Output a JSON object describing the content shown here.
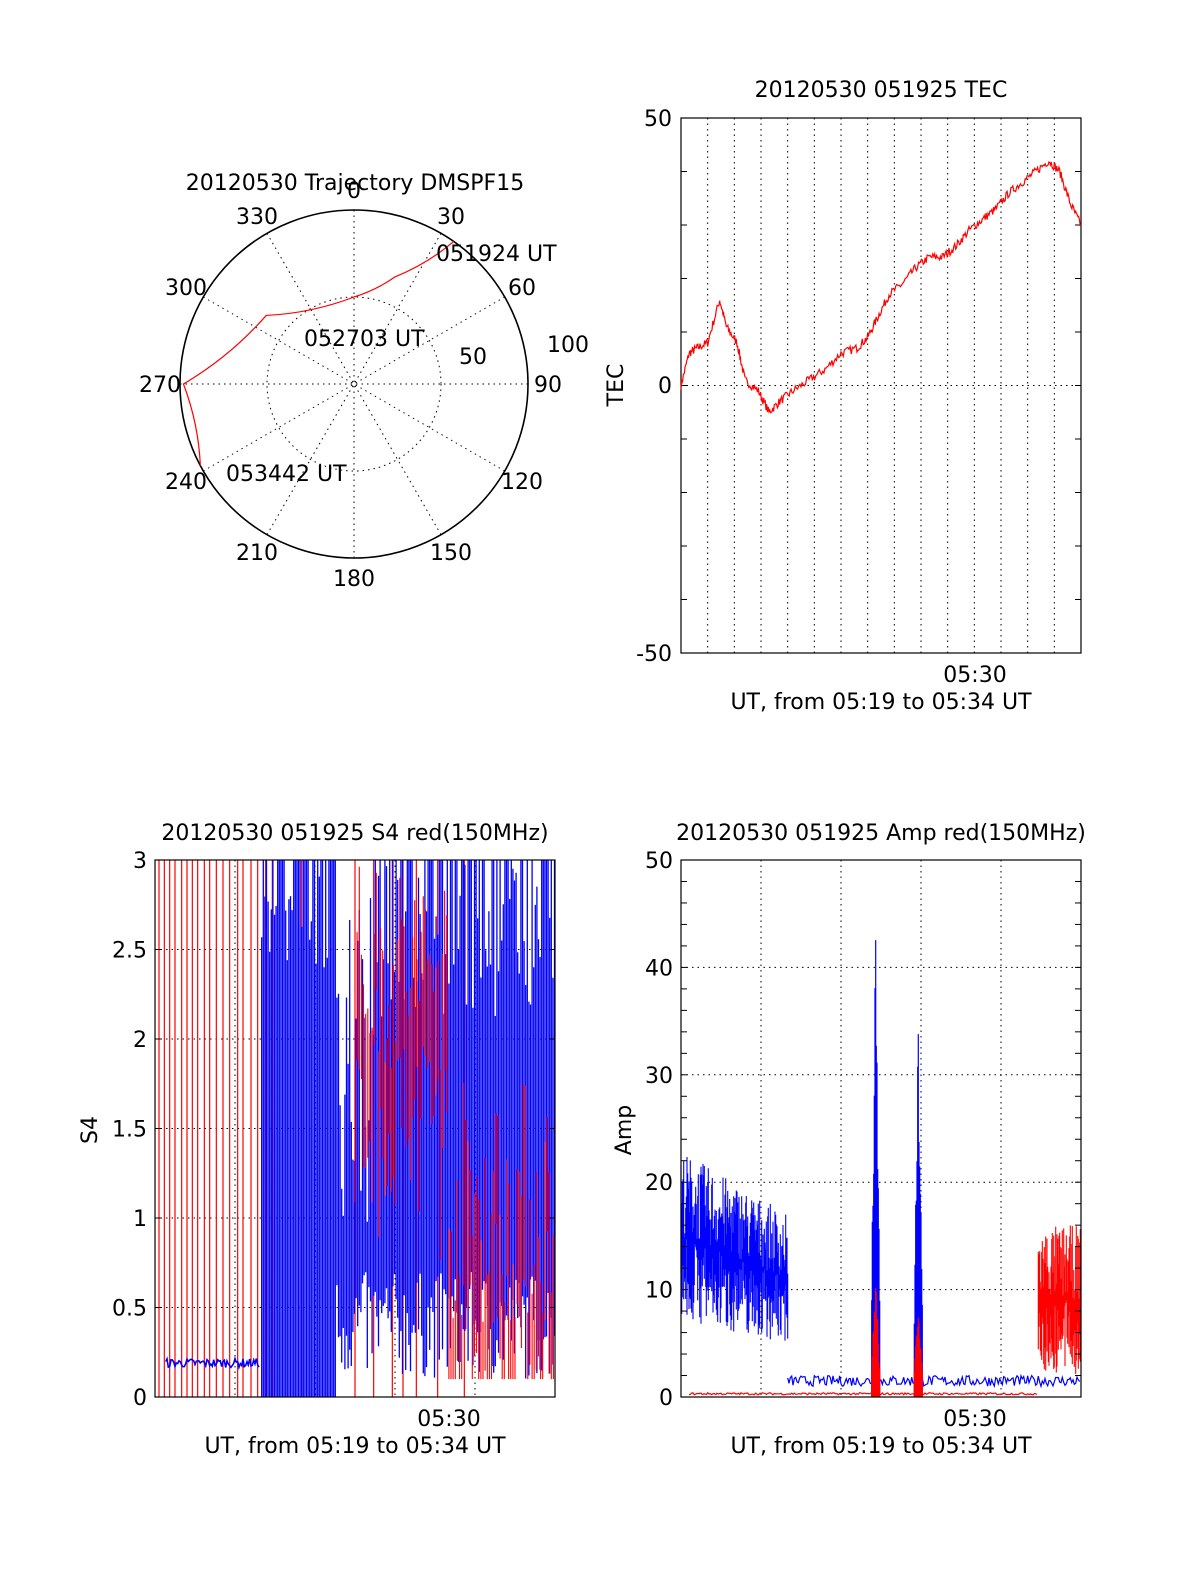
{
  "colors": {
    "red": "#ff0000",
    "blue": "#0000ff",
    "axis": "#000000"
  },
  "chart_data": [
    {
      "id": "trajectory",
      "type": "polar",
      "title": "20120530 Trajectory DMSPF15",
      "angle_labels": [
        "0",
        "30",
        "60",
        "90",
        "120",
        "150",
        "180",
        "210",
        "240",
        "270",
        "300",
        "330"
      ],
      "radial_labels": [
        "50",
        "100"
      ],
      "rlim": [
        0,
        100
      ],
      "grid": true,
      "series": [
        {
          "color": "red",
          "points": [
            [
              35,
              100
            ],
            [
              21,
              66
            ],
            [
              0,
              50
            ],
            [
              -52,
              64
            ],
            [
              -90,
              98
            ],
            [
              -118,
              100
            ]
          ]
        }
      ],
      "annotations": [
        {
          "text": "051924 UT",
          "az": 35,
          "r": 100
        },
        {
          "text": "052703 UT",
          "az": 8,
          "r": 50
        },
        {
          "text": "053442 UT",
          "az": -118,
          "r": 100
        }
      ]
    },
    {
      "id": "tec",
      "type": "line",
      "title": "20120530 051925 TEC",
      "xlabel": "UT, from 05:19 to 05:34 UT",
      "ylabel": "TEC",
      "xlim": [
        0,
        15
      ],
      "ylim": [
        -50,
        50
      ],
      "yticks": [
        "50",
        "0",
        "-50"
      ],
      "xtick_label": {
        "value": 10.5,
        "text": "05:30"
      },
      "grid": true,
      "series": [
        {
          "color": "red",
          "x": [
            0,
            0.3,
            0.6,
            1.0,
            1.45,
            1.7,
            2.1,
            2.4,
            2.9,
            3.3,
            3.7,
            4.2,
            4.8,
            5.4,
            6.0,
            6.6,
            7.0,
            7.4,
            7.8,
            8.3,
            8.8,
            9.3,
            9.8,
            10.3,
            10.8,
            11.3,
            11.8,
            12.3,
            12.8,
            13.3,
            13.8,
            14.2,
            14.6,
            15.0
          ],
          "y": [
            0,
            6,
            7,
            8,
            16,
            11,
            8,
            1,
            -1,
            -5,
            -3,
            -1,
            1,
            3,
            6,
            7,
            9,
            13,
            17,
            19,
            22,
            24,
            24,
            26,
            29,
            31,
            33,
            36,
            38,
            40,
            42,
            40,
            34,
            30
          ]
        }
      ]
    },
    {
      "id": "s4",
      "type": "line",
      "title": "20120530 051925 S4 red(150MHz)",
      "xlabel": "UT, from 05:19 to 05:34 UT",
      "ylabel": "S4",
      "xlim": [
        0,
        15
      ],
      "ylim": [
        0,
        3
      ],
      "yticks": [
        "0",
        "0.5",
        "1",
        "1.5",
        "2",
        "2.5",
        "3"
      ],
      "xtick_label": {
        "value": 10.5,
        "text": "05:30"
      },
      "grid": true,
      "series": [
        {
          "name": "",
          "color": "red",
          "spikes": [
            0.15,
            0.35,
            0.55,
            0.75,
            1.0,
            1.2,
            1.4,
            1.6,
            1.85,
            2.05,
            2.3,
            2.55,
            2.8,
            3.1,
            3.3,
            3.6,
            3.85,
            4.15,
            4.4,
            5.5,
            7.5,
            8.2,
            8.9,
            9.3,
            9.8,
            10.6,
            11.6
          ]
        },
        {
          "name": "",
          "color": "blue",
          "base_x": [
            0.4,
            3.9
          ],
          "base_y": 0.19,
          "dense_range": [
            4.0,
            15.0
          ]
        }
      ]
    },
    {
      "id": "amp",
      "type": "line",
      "title": "20120530 051925 Amp red(150MHz)",
      "xlabel": "UT, from 05:19 to 05:34 UT",
      "ylabel": "Amp",
      "xlim": [
        0,
        15
      ],
      "ylim": [
        0,
        50
      ],
      "yticks": [
        "0",
        "10",
        "20",
        "30",
        "40",
        "50"
      ],
      "xtick_label": {
        "value": 10.5,
        "text": "05:30"
      },
      "grid": true,
      "series": [
        {
          "color": "blue",
          "noise_segment": {
            "x": [
              0,
              4.0
            ],
            "center": [
              15,
              11
            ],
            "spread": [
              8,
              6
            ]
          },
          "peaks": [
            {
              "x": 7.3,
              "y": 44
            },
            {
              "x": 8.9,
              "y": 36
            }
          ],
          "floor": 1
        },
        {
          "color": "red",
          "noise_segment": {
            "x": [
              13.4,
              15.0
            ],
            "center": [
              9,
              9
            ],
            "spread": [
              7,
              7
            ]
          },
          "peaks": [
            {
              "x": 7.3,
              "y": 12
            },
            {
              "x": 8.9,
              "y": 10
            }
          ],
          "floor": 0.2
        }
      ]
    }
  ]
}
